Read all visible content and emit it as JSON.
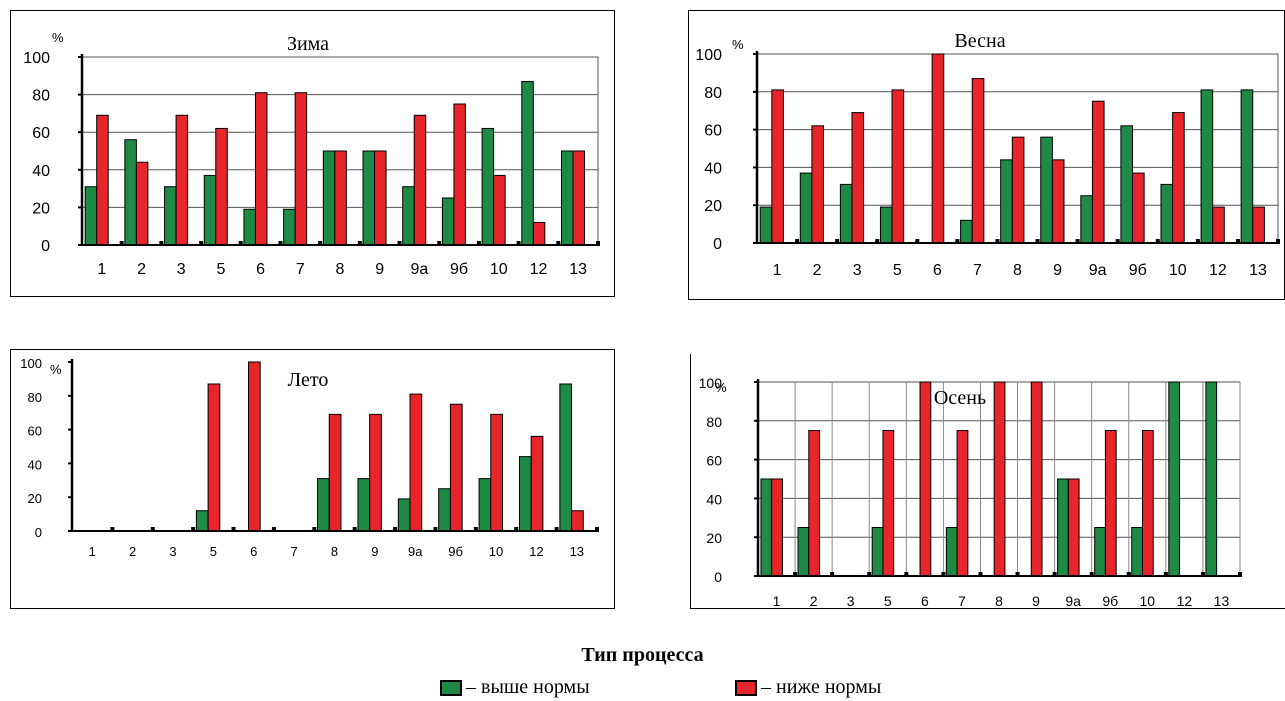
{
  "colors": {
    "above": "#1e8a46",
    "below": "#e8252a"
  },
  "chart_data": [
    {
      "type": "bar",
      "title": "Зима",
      "unit": "%",
      "categories": [
        "1",
        "2",
        "3",
        "5",
        "6",
        "7",
        "8",
        "9",
        "9а",
        "9б",
        "10",
        "12",
        "13"
      ],
      "ylim": [
        0,
        100
      ],
      "yticks": [
        0,
        20,
        40,
        60,
        80,
        100
      ],
      "series": [
        {
          "name": "выше нормы",
          "values": [
            31,
            56,
            31,
            37,
            19,
            19,
            50,
            50,
            31,
            25,
            62,
            87,
            50
          ]
        },
        {
          "name": "ниже нормы",
          "values": [
            69,
            44,
            69,
            62,
            81,
            81,
            50,
            50,
            69,
            75,
            37,
            12,
            50
          ]
        }
      ]
    },
    {
      "type": "bar",
      "title": "Весна",
      "unit": "%",
      "categories": [
        "1",
        "2",
        "3",
        "5",
        "6",
        "7",
        "8",
        "9",
        "9а",
        "9б",
        "10",
        "12",
        "13"
      ],
      "ylim": [
        0,
        100
      ],
      "yticks": [
        0,
        20,
        40,
        60,
        80,
        100
      ],
      "series": [
        {
          "name": "выше нормы",
          "values": [
            19,
            37,
            31,
            19,
            0,
            12,
            44,
            56,
            25,
            62,
            31,
            81,
            81
          ]
        },
        {
          "name": "ниже нормы",
          "values": [
            81,
            62,
            69,
            81,
            100,
            87,
            56,
            44,
            75,
            37,
            69,
            19,
            19
          ]
        }
      ]
    },
    {
      "type": "bar",
      "title": "Лето",
      "unit": "%",
      "categories": [
        "1",
        "2",
        "3",
        "5",
        "6",
        "7",
        "8",
        "9",
        "9а",
        "9б",
        "10",
        "12",
        "13"
      ],
      "ylim": [
        0,
        100
      ],
      "yticks": [
        0,
        20,
        40,
        60,
        80,
        100
      ],
      "series": [
        {
          "name": "выше нормы",
          "values": [
            0,
            0,
            0,
            12,
            0,
            0,
            31,
            31,
            19,
            25,
            31,
            44,
            87
          ]
        },
        {
          "name": "ниже нормы",
          "values": [
            0,
            0,
            0,
            87,
            100,
            0,
            69,
            69,
            81,
            75,
            69,
            56,
            12
          ]
        }
      ]
    },
    {
      "type": "bar",
      "title": "Осень",
      "unit": "%",
      "categories": [
        "1",
        "2",
        "3",
        "5",
        "6",
        "7",
        "8",
        "9",
        "9а",
        "9б",
        "10",
        "12",
        "13"
      ],
      "ylim": [
        0,
        100
      ],
      "yticks": [
        0,
        20,
        40,
        60,
        80,
        100
      ],
      "series": [
        {
          "name": "выше нормы",
          "values": [
            50,
            25,
            0,
            25,
            0,
            25,
            0,
            0,
            50,
            25,
            25,
            100,
            100
          ]
        },
        {
          "name": "ниже нормы",
          "values": [
            50,
            75,
            0,
            75,
            100,
            75,
            100,
            100,
            50,
            75,
            75,
            0,
            0
          ]
        }
      ]
    }
  ],
  "legend": {
    "title": "Тип процесса",
    "items": [
      {
        "label": "– выше нормы",
        "color": "#1e8a46"
      },
      {
        "label": "– ниже нормы",
        "color": "#e8252a"
      }
    ]
  }
}
